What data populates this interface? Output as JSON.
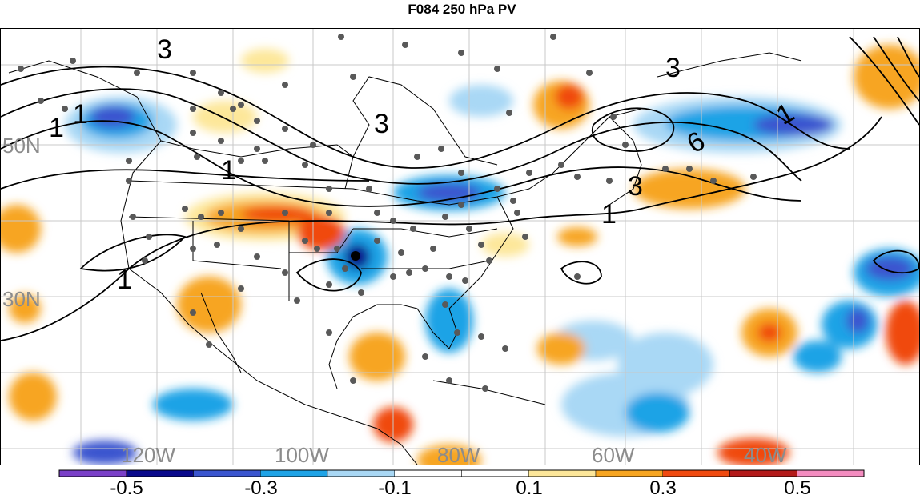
{
  "title": "F084 250 hPa PV",
  "map": {
    "lat_labels": [
      "50N",
      "30N"
    ],
    "lon_labels": [
      "120W",
      "100W",
      "80W",
      "60W",
      "40W"
    ],
    "contour_labels": [
      "3",
      "3",
      "3",
      "3",
      "6",
      "1",
      "1",
      "1",
      "1",
      "1",
      "1"
    ],
    "label_color": "#8c8c8c"
  },
  "colorbar": {
    "colors": [
      "#7a3fc8",
      "#0a0a8c",
      "#3a55cf",
      "#1ea3e6",
      "#a9d8f5",
      "#ffffff",
      "#ffffff",
      "#fde79a",
      "#f7a520",
      "#f04a10",
      "#b31a1a",
      "#f48cc0"
    ],
    "tick_labels": [
      "-0.5",
      "-0.3",
      "-0.1",
      "0.1",
      "0.3",
      "0.5"
    ]
  }
}
